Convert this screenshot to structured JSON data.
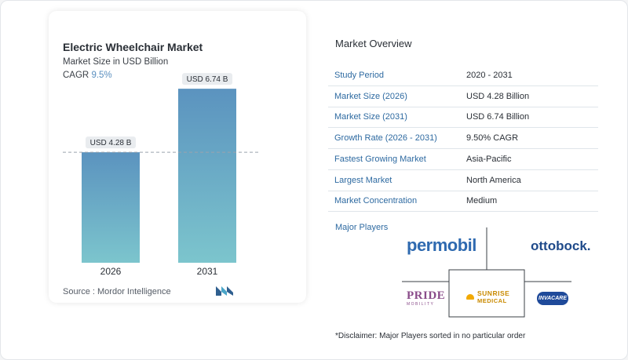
{
  "chart_data": {
    "type": "bar",
    "title": "Electric Wheelchair Market",
    "subtitle": "Market Size in USD Billion",
    "cagr_label": "CAGR",
    "cagr_value": "9.5%",
    "categories": [
      "2026",
      "2031"
    ],
    "values": [
      4.28,
      6.74
    ],
    "data_labels": [
      "USD 4.28 B",
      "USD 6.74 B"
    ],
    "ylim": [
      0,
      7.2
    ],
    "colors": [
      "#5b93bf",
      "#7cc5cd"
    ],
    "grid": false,
    "reference_line_at_first_value": true
  },
  "source": "Source :  Mordor Intelligence",
  "overview": {
    "title": "Market Overview",
    "rows": [
      {
        "key": "Study Period",
        "value": "2020 - 2031"
      },
      {
        "key": "Market Size (2026)",
        "value": "USD 4.28 Billion"
      },
      {
        "key": "Market Size (2031)",
        "value": "USD 6.74 Billion"
      },
      {
        "key": "Growth Rate (2026 - 2031)",
        "value": "9.50% CAGR"
      },
      {
        "key": "Fastest Growing Market",
        "value": "Asia-Pacific"
      },
      {
        "key": "Largest Market",
        "value": "North America"
      },
      {
        "key": "Market Concentration",
        "value": "Medium"
      }
    ]
  },
  "players": {
    "label": "Major Players",
    "logos": [
      "permobil",
      "ottobock.",
      "PRIDE",
      "SUNRISE",
      "MEDICAL",
      "INVACARE"
    ],
    "pride_tagline": "MOBILITY"
  },
  "disclaimer": "*Disclaimer: Major Players sorted in no particular order"
}
